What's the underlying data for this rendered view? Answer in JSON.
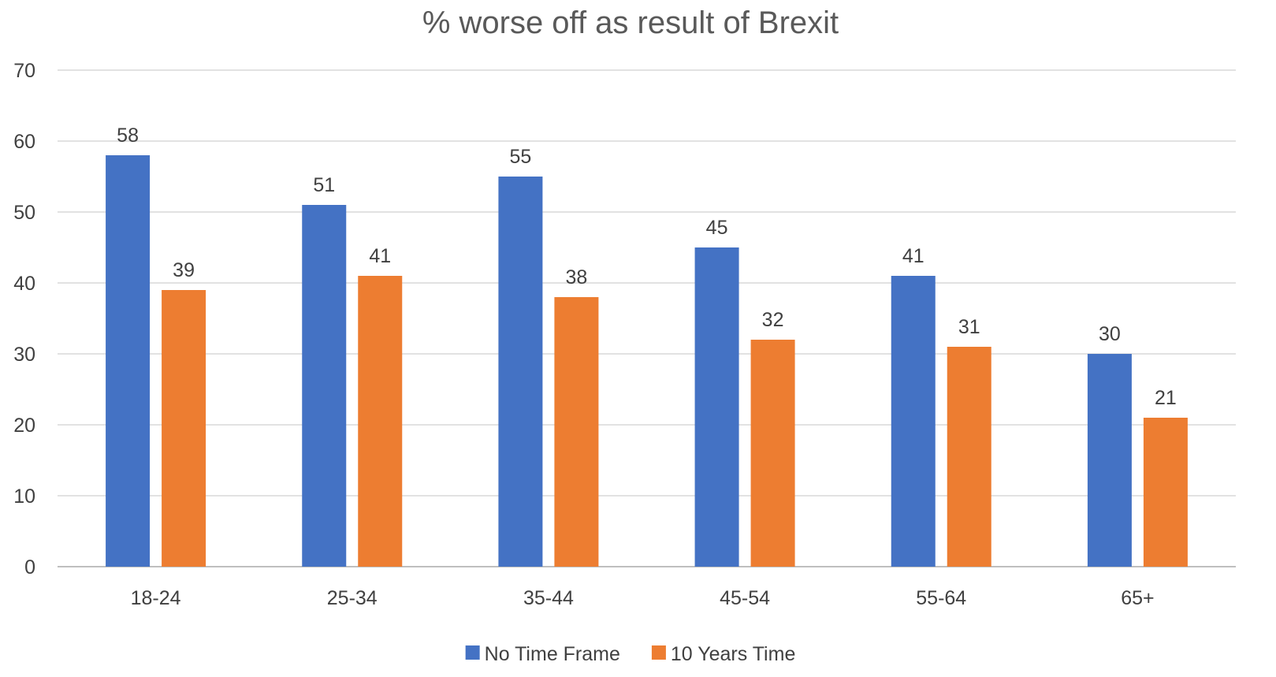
{
  "chart_data": {
    "type": "bar",
    "title": "% worse off as result of Brexit",
    "xlabel": "",
    "ylabel": "",
    "categories": [
      "18-24",
      "25-34",
      "35-44",
      "45-54",
      "55-64",
      "65+"
    ],
    "series": [
      {
        "name": "No Time Frame",
        "color": "#4472C4",
        "values": [
          58,
          51,
          55,
          45,
          41,
          30
        ]
      },
      {
        "name": "10 Years Time",
        "color": "#ED7D31",
        "values": [
          39,
          41,
          38,
          32,
          31,
          21
        ]
      }
    ],
    "ylim": [
      0,
      70
    ],
    "yticks": [
      0,
      10,
      20,
      30,
      40,
      50,
      60,
      70
    ],
    "grid": true,
    "legend_position": "bottom",
    "data_labels": true
  },
  "colors": {
    "grid": "#D9D9D9",
    "axis": "#BFBFBF"
  }
}
